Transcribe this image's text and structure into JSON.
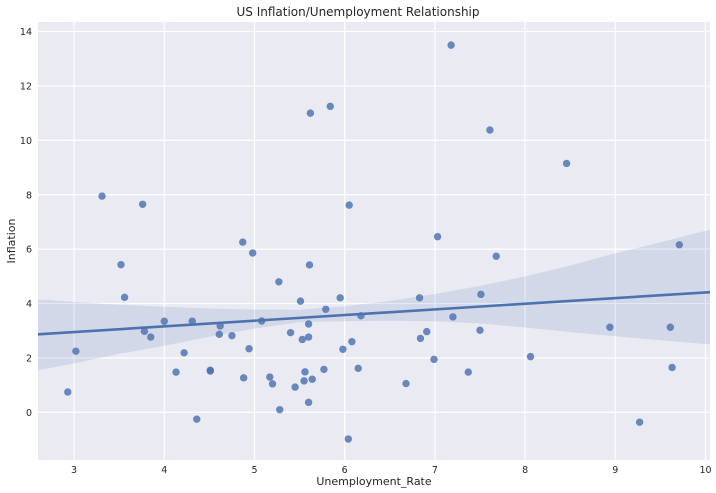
{
  "chart_data": {
    "type": "scatter",
    "title": "US Inflation/Unemployment Relationship",
    "xlabel": "Unemployment_Rate",
    "ylabel": "Inflation",
    "xlim": [
      2.6,
      10.05
    ],
    "ylim": [
      -1.75,
      14.35
    ],
    "xticks": [
      3,
      4,
      5,
      6,
      7,
      8,
      9,
      10
    ],
    "yticks": [
      0,
      2,
      4,
      6,
      8,
      10,
      12,
      14
    ],
    "grid": true,
    "colors": {
      "background": "#eaeaf2",
      "grid": "#ffffff",
      "points": "#4c72b0",
      "regression_line": "#4c72b0",
      "confidence_band": "#4c72b0"
    },
    "points": [
      {
        "x": 2.93,
        "y": 0.75
      },
      {
        "x": 3.02,
        "y": 2.25
      },
      {
        "x": 3.31,
        "y": 7.95
      },
      {
        "x": 3.52,
        "y": 5.43
      },
      {
        "x": 3.56,
        "y": 4.23
      },
      {
        "x": 3.76,
        "y": 7.65
      },
      {
        "x": 3.78,
        "y": 2.98
      },
      {
        "x": 3.85,
        "y": 2.77
      },
      {
        "x": 4.0,
        "y": 3.35
      },
      {
        "x": 4.13,
        "y": 1.48
      },
      {
        "x": 4.22,
        "y": 2.19
      },
      {
        "x": 4.31,
        "y": 3.35
      },
      {
        "x": 4.36,
        "y": -0.25
      },
      {
        "x": 4.51,
        "y": 1.55
      },
      {
        "x": 4.51,
        "y": 1.52
      },
      {
        "x": 4.61,
        "y": 2.87
      },
      {
        "x": 4.62,
        "y": 3.18
      },
      {
        "x": 4.75,
        "y": 2.82
      },
      {
        "x": 4.87,
        "y": 6.26
      },
      {
        "x": 4.88,
        "y": 1.27
      },
      {
        "x": 4.94,
        "y": 2.34
      },
      {
        "x": 4.98,
        "y": 5.86
      },
      {
        "x": 5.08,
        "y": 3.36
      },
      {
        "x": 5.17,
        "y": 1.3
      },
      {
        "x": 5.2,
        "y": 1.05
      },
      {
        "x": 5.27,
        "y": 4.8
      },
      {
        "x": 5.28,
        "y": 0.1
      },
      {
        "x": 5.4,
        "y": 2.93
      },
      {
        "x": 5.45,
        "y": 0.93
      },
      {
        "x": 5.51,
        "y": 4.09
      },
      {
        "x": 5.53,
        "y": 2.68
      },
      {
        "x": 5.55,
        "y": 1.16
      },
      {
        "x": 5.56,
        "y": 1.49
      },
      {
        "x": 5.6,
        "y": 3.25
      },
      {
        "x": 5.6,
        "y": 2.77
      },
      {
        "x": 5.6,
        "y": 0.37
      },
      {
        "x": 5.61,
        "y": 5.42
      },
      {
        "x": 5.62,
        "y": 11.0
      },
      {
        "x": 5.64,
        "y": 1.22
      },
      {
        "x": 5.77,
        "y": 1.58
      },
      {
        "x": 5.79,
        "y": 3.79
      },
      {
        "x": 5.84,
        "y": 11.25
      },
      {
        "x": 5.95,
        "y": 4.21
      },
      {
        "x": 5.98,
        "y": 2.32
      },
      {
        "x": 6.04,
        "y": -0.98
      },
      {
        "x": 6.05,
        "y": 7.62
      },
      {
        "x": 6.08,
        "y": 2.6
      },
      {
        "x": 6.15,
        "y": 1.62
      },
      {
        "x": 6.18,
        "y": 3.55
      },
      {
        "x": 6.68,
        "y": 1.06
      },
      {
        "x": 6.83,
        "y": 4.21
      },
      {
        "x": 6.84,
        "y": 2.72
      },
      {
        "x": 6.91,
        "y": 2.97
      },
      {
        "x": 6.99,
        "y": 1.95
      },
      {
        "x": 7.03,
        "y": 6.46
      },
      {
        "x": 7.18,
        "y": 13.5
      },
      {
        "x": 7.2,
        "y": 3.51
      },
      {
        "x": 7.37,
        "y": 1.48
      },
      {
        "x": 7.5,
        "y": 3.02
      },
      {
        "x": 7.51,
        "y": 4.34
      },
      {
        "x": 7.61,
        "y": 10.38
      },
      {
        "x": 7.68,
        "y": 5.74
      },
      {
        "x": 8.06,
        "y": 2.05
      },
      {
        "x": 8.46,
        "y": 9.15
      },
      {
        "x": 8.94,
        "y": 3.13
      },
      {
        "x": 9.27,
        "y": -0.36
      },
      {
        "x": 9.61,
        "y": 3.13
      },
      {
        "x": 9.63,
        "y": 1.65
      },
      {
        "x": 9.71,
        "y": 6.16
      }
    ],
    "regression_line": {
      "x": [
        2.6,
        10.05
      ],
      "y": [
        2.87,
        4.42
      ]
    },
    "confidence_band": {
      "x": [
        2.6,
        3.0,
        3.5,
        4.0,
        4.5,
        5.0,
        5.5,
        6.0,
        6.5,
        7.0,
        7.5,
        8.0,
        8.5,
        9.0,
        9.5,
        10.05
      ],
      "upper": [
        4.15,
        4.06,
        3.96,
        3.88,
        3.82,
        3.78,
        3.77,
        3.9,
        4.1,
        4.35,
        4.65,
        5.0,
        5.4,
        5.85,
        6.25,
        6.72
      ],
      "lower": [
        1.55,
        1.8,
        2.15,
        2.45,
        2.78,
        3.08,
        3.32,
        3.35,
        3.37,
        3.35,
        3.27,
        3.12,
        2.95,
        2.8,
        2.65,
        2.5
      ]
    }
  }
}
